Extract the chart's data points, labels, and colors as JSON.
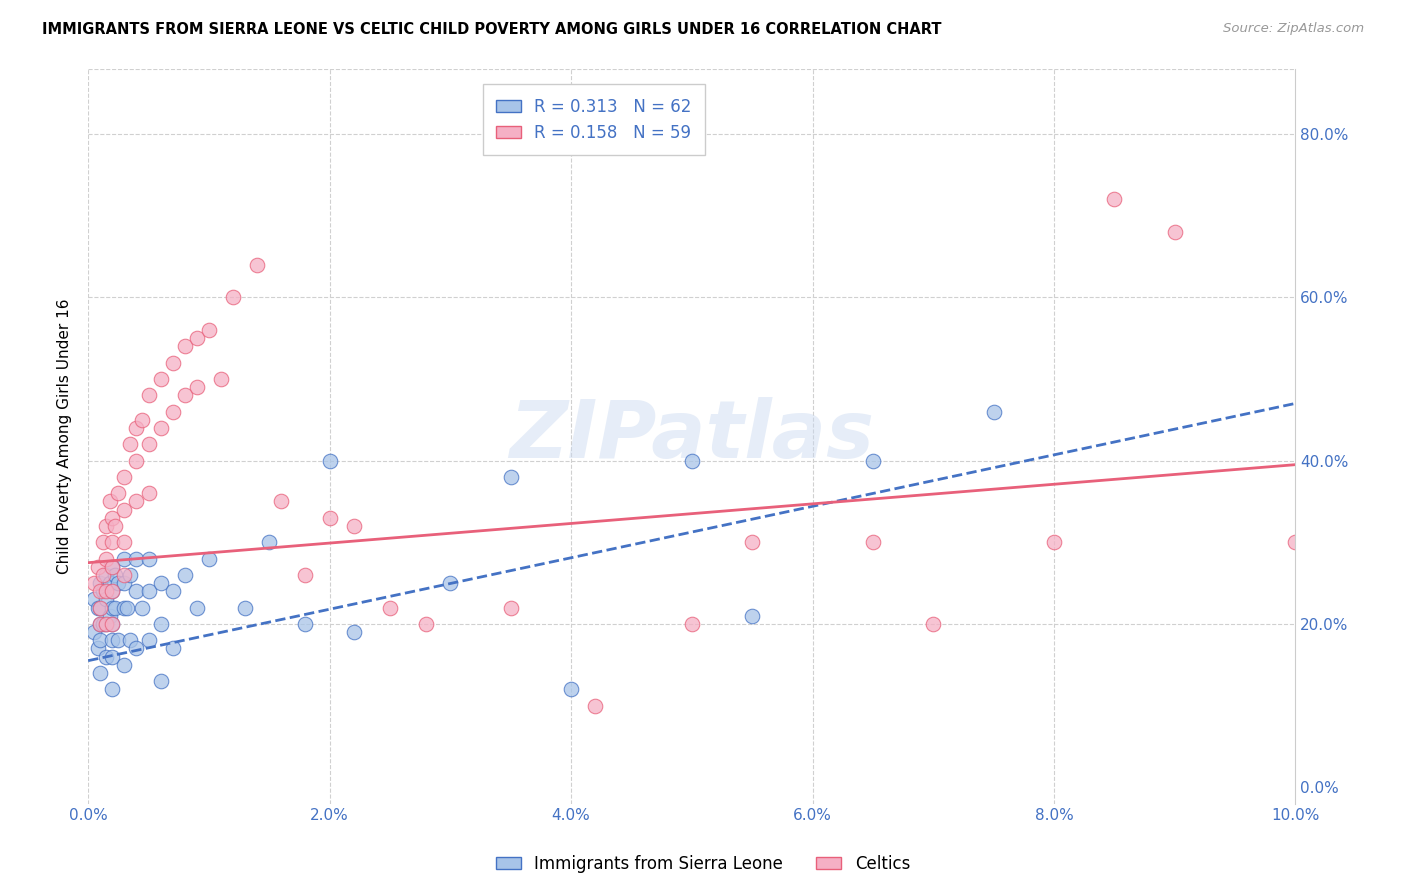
{
  "title": "IMMIGRANTS FROM SIERRA LEONE VS CELTIC CHILD POVERTY AMONG GIRLS UNDER 16 CORRELATION CHART",
  "source": "Source: ZipAtlas.com",
  "ylabel": "Child Poverty Among Girls Under 16",
  "xlim": [
    0,
    0.1
  ],
  "ylim": [
    -0.02,
    0.88
  ],
  "legend_r1": "R = 0.313",
  "legend_n1": "N = 62",
  "legend_r2": "R = 0.158",
  "legend_n2": "N = 59",
  "legend_label1": "Immigrants from Sierra Leone",
  "legend_label2": "Celtics",
  "color_blue": "#a8c4e8",
  "color_pink": "#f5b0c5",
  "color_blue_line": "#4472c4",
  "color_pink_line": "#e8607a",
  "color_legend_text": "#4472c4",
  "watermark_text": "ZIPatlas",
  "blue_x": [
    0.0005,
    0.0005,
    0.0008,
    0.0008,
    0.001,
    0.001,
    0.001,
    0.001,
    0.001,
    0.0012,
    0.0012,
    0.0015,
    0.0015,
    0.0015,
    0.0015,
    0.0018,
    0.0018,
    0.002,
    0.002,
    0.002,
    0.002,
    0.002,
    0.002,
    0.002,
    0.0022,
    0.0022,
    0.0025,
    0.0025,
    0.003,
    0.003,
    0.003,
    0.003,
    0.0032,
    0.0035,
    0.0035,
    0.004,
    0.004,
    0.004,
    0.0045,
    0.005,
    0.005,
    0.005,
    0.006,
    0.006,
    0.006,
    0.007,
    0.007,
    0.008,
    0.009,
    0.01,
    0.013,
    0.015,
    0.018,
    0.02,
    0.022,
    0.03,
    0.035,
    0.04,
    0.05,
    0.055,
    0.065,
    0.075
  ],
  "blue_y": [
    0.23,
    0.19,
    0.22,
    0.17,
    0.25,
    0.22,
    0.2,
    0.18,
    0.14,
    0.24,
    0.2,
    0.26,
    0.23,
    0.2,
    0.16,
    0.25,
    0.21,
    0.27,
    0.24,
    0.22,
    0.2,
    0.18,
    0.16,
    0.12,
    0.26,
    0.22,
    0.25,
    0.18,
    0.28,
    0.25,
    0.22,
    0.15,
    0.22,
    0.26,
    0.18,
    0.28,
    0.24,
    0.17,
    0.22,
    0.28,
    0.24,
    0.18,
    0.25,
    0.2,
    0.13,
    0.24,
    0.17,
    0.26,
    0.22,
    0.28,
    0.22,
    0.3,
    0.2,
    0.4,
    0.19,
    0.25,
    0.38,
    0.12,
    0.4,
    0.21,
    0.4,
    0.46
  ],
  "pink_x": [
    0.0005,
    0.0008,
    0.001,
    0.001,
    0.001,
    0.0012,
    0.0012,
    0.0015,
    0.0015,
    0.0015,
    0.0015,
    0.0018,
    0.002,
    0.002,
    0.002,
    0.002,
    0.002,
    0.0022,
    0.0025,
    0.003,
    0.003,
    0.003,
    0.003,
    0.0035,
    0.004,
    0.004,
    0.004,
    0.0045,
    0.005,
    0.005,
    0.005,
    0.006,
    0.006,
    0.007,
    0.007,
    0.008,
    0.008,
    0.009,
    0.009,
    0.01,
    0.011,
    0.012,
    0.014,
    0.016,
    0.018,
    0.02,
    0.022,
    0.025,
    0.028,
    0.035,
    0.042,
    0.05,
    0.055,
    0.065,
    0.07,
    0.08,
    0.085,
    0.09,
    0.1
  ],
  "pink_y": [
    0.25,
    0.27,
    0.24,
    0.22,
    0.2,
    0.3,
    0.26,
    0.32,
    0.28,
    0.24,
    0.2,
    0.35,
    0.33,
    0.3,
    0.27,
    0.24,
    0.2,
    0.32,
    0.36,
    0.38,
    0.34,
    0.3,
    0.26,
    0.42,
    0.44,
    0.4,
    0.35,
    0.45,
    0.48,
    0.42,
    0.36,
    0.5,
    0.44,
    0.52,
    0.46,
    0.54,
    0.48,
    0.55,
    0.49,
    0.56,
    0.5,
    0.6,
    0.64,
    0.35,
    0.26,
    0.33,
    0.32,
    0.22,
    0.2,
    0.22,
    0.1,
    0.2,
    0.3,
    0.3,
    0.2,
    0.3,
    0.72,
    0.68,
    0.3
  ],
  "blue_line_x0": 0.0,
  "blue_line_x1": 0.1,
  "blue_line_y0": 0.155,
  "blue_line_y1": 0.47,
  "pink_line_x0": 0.0,
  "pink_line_x1": 0.1,
  "pink_line_y0": 0.275,
  "pink_line_y1": 0.395
}
